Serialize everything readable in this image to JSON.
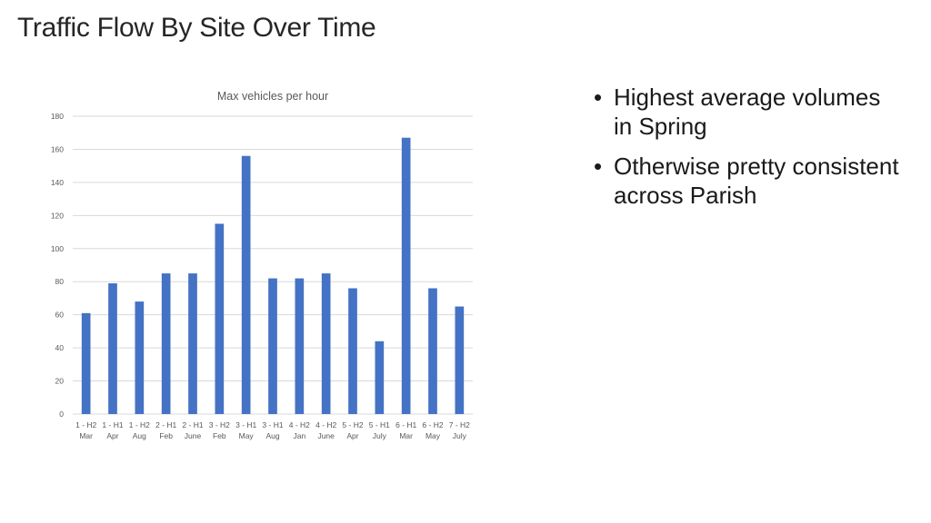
{
  "slide": {
    "title": "Traffic Flow By Site Over Time",
    "bullets": [
      "Highest average volumes in Spring",
      "Otherwise pretty consistent across Parish"
    ]
  },
  "chart_data": {
    "type": "bar",
    "title": "Max vehicles per hour",
    "xlabel": "",
    "ylabel": "",
    "ylim": [
      0,
      180
    ],
    "yticks": [
      0,
      20,
      40,
      60,
      80,
      100,
      120,
      140,
      160,
      180
    ],
    "grid": true,
    "categories": [
      [
        "1 - H2",
        "Mar"
      ],
      [
        "1 - H1",
        "Apr"
      ],
      [
        "1 - H2",
        "Aug"
      ],
      [
        "2 - H1",
        "Feb"
      ],
      [
        "2 - H1",
        "June"
      ],
      [
        "3 - H2",
        "Feb"
      ],
      [
        "3 - H1",
        "May"
      ],
      [
        "3 - H1",
        "Aug"
      ],
      [
        "4 - H2",
        "Jan"
      ],
      [
        "4 - H2",
        "June"
      ],
      [
        "5 - H2",
        "Apr"
      ],
      [
        "5 - H1",
        "July"
      ],
      [
        "6 - H1",
        "Mar"
      ],
      [
        "6 - H2",
        "May"
      ],
      [
        "7 - H2",
        "July"
      ]
    ],
    "values": [
      61,
      79,
      68,
      85,
      85,
      115,
      156,
      82,
      82,
      85,
      76,
      44,
      167,
      76,
      65
    ],
    "colors": {
      "bar": "#4472C4",
      "grid": "#D9D9D9",
      "text": "#595959"
    }
  }
}
